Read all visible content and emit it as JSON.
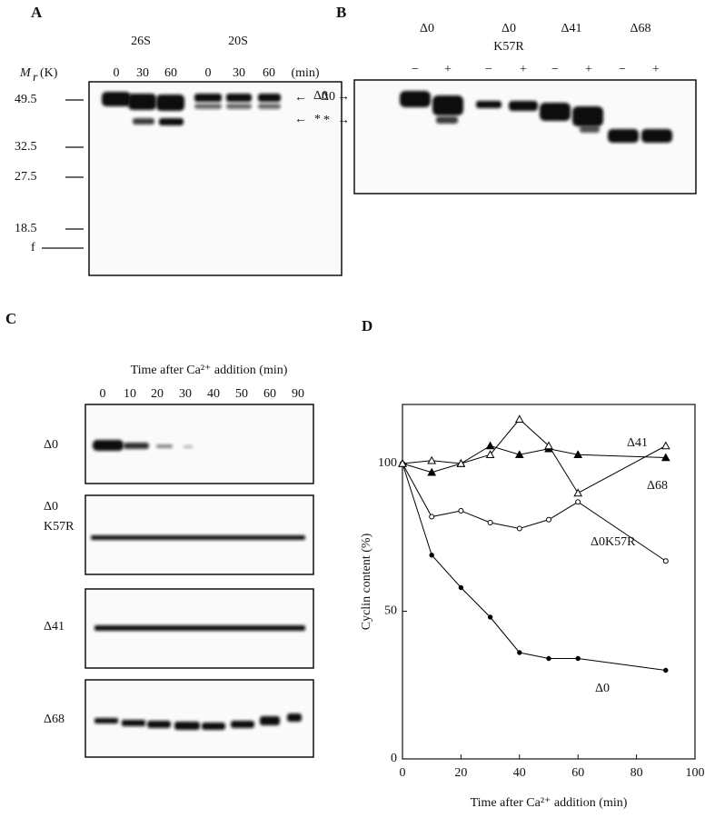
{
  "panel_a": {
    "letter": "A",
    "groups": [
      "26S",
      "20S"
    ],
    "mr_symbol": "M",
    "mr_subscript": "r",
    "mr_unit": "(K)",
    "lanes": [
      "0",
      "30",
      "60",
      "0",
      "30",
      "60"
    ],
    "time_unit": "(min)",
    "markers": [
      "49.5",
      "32.5",
      "27.5",
      "18.5",
      "f"
    ],
    "band_labels": [
      "Δ0",
      "*"
    ]
  },
  "panel_b": {
    "letter": "B",
    "constructs": [
      "Δ0",
      "Δ0",
      "Δ41",
      "Δ68"
    ],
    "construct_note": "K57R",
    "treatments": [
      "−",
      "+",
      "−",
      "+",
      "−",
      "+",
      "−",
      "+"
    ],
    "band_labels": [
      "Δ0",
      "*"
    ]
  },
  "panel_c": {
    "letter": "C",
    "title": "Time after Ca²⁺ addition (min)",
    "lanes": [
      "0",
      "10",
      "20",
      "30",
      "40",
      "50",
      "60",
      "90"
    ],
    "rows": [
      "Δ0",
      "Δ0",
      "Δ41",
      "Δ68"
    ],
    "row_note": "K57R"
  },
  "chart_data": {
    "type": "line",
    "letter": "D",
    "x_label": "Time after Ca²⁺ addition (min)",
    "y_label": "Cyclin content  (%)",
    "x": [
      0,
      10,
      20,
      30,
      40,
      50,
      60,
      90
    ],
    "series": [
      {
        "name": "Δ0",
        "color": "#000000",
        "marker": "dot",
        "values": [
          100,
          69,
          58,
          48,
          36,
          34,
          34,
          30
        ]
      },
      {
        "name": "Δ0K57R",
        "color": "#000000",
        "marker": "circle",
        "values": [
          100,
          82,
          84,
          80,
          78,
          81,
          87,
          67
        ]
      },
      {
        "name": "Δ41",
        "color": "#000000",
        "marker": "triangle-filled",
        "values": [
          100,
          97,
          100,
          106,
          103,
          105,
          103,
          102
        ]
      },
      {
        "name": "Δ68",
        "color": "#000000",
        "marker": "triangle-open",
        "values": [
          100,
          101,
          100,
          103,
          115,
          106,
          90,
          106
        ]
      }
    ],
    "xlim": [
      0,
      100
    ],
    "xticks": [
      0,
      20,
      40,
      60,
      80,
      100
    ],
    "ylim": [
      0,
      120
    ],
    "yticks": [
      0,
      50,
      100
    ],
    "grid": false
  }
}
